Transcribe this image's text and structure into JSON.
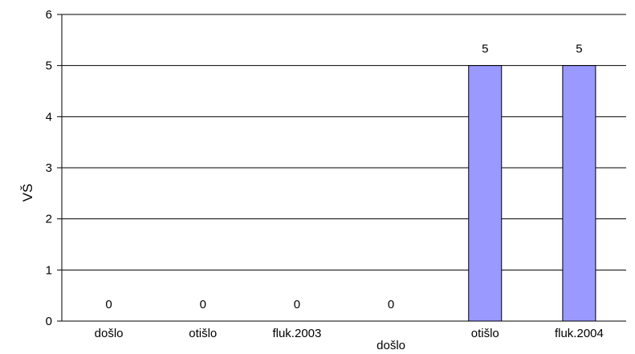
{
  "chart_data": {
    "type": "bar",
    "title": "",
    "xlabel": "",
    "ylabel": "VŠ",
    "ylim": [
      0,
      6
    ],
    "yticks": [
      0,
      1,
      2,
      3,
      4,
      5,
      6
    ],
    "grid": true,
    "bar_color": "#9999ff",
    "categories": [
      "došlo",
      "otišlo",
      "fluk.2003",
      "došlo",
      "otišlo",
      "fluk.2004"
    ],
    "values": [
      0,
      0,
      0,
      0,
      5,
      5
    ],
    "data_labels": [
      "0",
      "0",
      "0",
      "0",
      "5",
      "5"
    ]
  }
}
